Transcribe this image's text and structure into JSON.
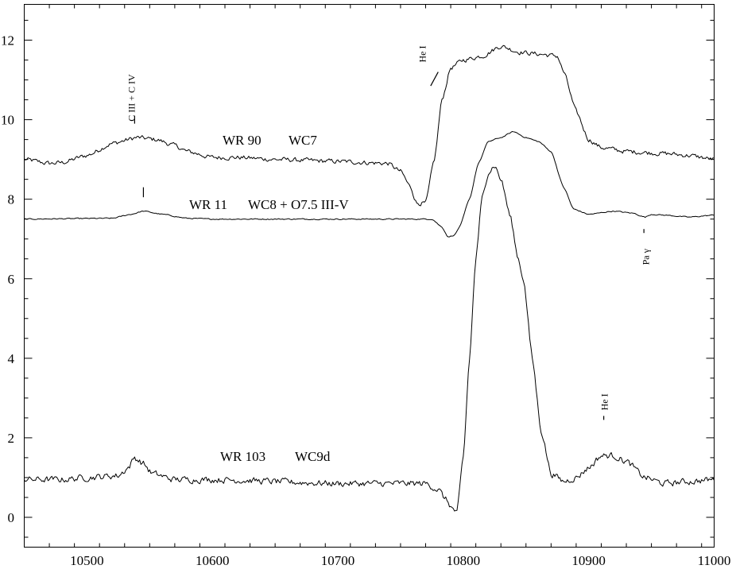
{
  "chart_data": {
    "type": "line",
    "title": "",
    "xlabel": "",
    "ylabel": "",
    "xlim": [
      10450,
      11000
    ],
    "ylim": [
      -0.75,
      12.9
    ],
    "x_ticks": [
      10500,
      10600,
      10700,
      10800,
      10900,
      11000
    ],
    "y_ticks": [
      0,
      2,
      4,
      6,
      8,
      10,
      12
    ],
    "x_minor_step": 20,
    "y_minor_step": 0.5,
    "grid": false,
    "series": [
      {
        "key": "wr90",
        "label_name": "WR 90",
        "label_type": "WC7",
        "noise": 0.05,
        "points": [
          [
            10450,
            9.0
          ],
          [
            10470,
            8.9
          ],
          [
            10480,
            8.92
          ],
          [
            10500,
            9.1
          ],
          [
            10520,
            9.4
          ],
          [
            10540,
            9.55
          ],
          [
            10555,
            9.5
          ],
          [
            10570,
            9.35
          ],
          [
            10580,
            9.2
          ],
          [
            10600,
            9.05
          ],
          [
            10620,
            9.05
          ],
          [
            10650,
            9.0
          ],
          [
            10700,
            8.95
          ],
          [
            10740,
            8.9
          ],
          [
            10750,
            8.7
          ],
          [
            10758,
            8.3
          ],
          [
            10763,
            7.9
          ],
          [
            10770,
            7.9
          ],
          [
            10777,
            9.0
          ],
          [
            10783,
            10.5
          ],
          [
            10790,
            11.3
          ],
          [
            10800,
            11.5
          ],
          [
            10815,
            11.6
          ],
          [
            10830,
            11.85
          ],
          [
            10845,
            11.7
          ],
          [
            10860,
            11.65
          ],
          [
            10875,
            11.6
          ],
          [
            10880,
            11.2
          ],
          [
            10890,
            10.2
          ],
          [
            10900,
            9.5
          ],
          [
            10910,
            9.3
          ],
          [
            10930,
            9.2
          ],
          [
            10960,
            9.15
          ],
          [
            10980,
            9.1
          ],
          [
            11000,
            9.0
          ]
        ]
      },
      {
        "key": "wr11",
        "label_name": "WR 11",
        "label_type": "WC8 + O7.5 III-V",
        "noise": 0.012,
        "points": [
          [
            10450,
            7.5
          ],
          [
            10520,
            7.52
          ],
          [
            10535,
            7.62
          ],
          [
            10545,
            7.7
          ],
          [
            10560,
            7.62
          ],
          [
            10580,
            7.52
          ],
          [
            10600,
            7.5
          ],
          [
            10700,
            7.5
          ],
          [
            10775,
            7.5
          ],
          [
            10783,
            7.3
          ],
          [
            10788,
            7.05
          ],
          [
            10793,
            7.1
          ],
          [
            10797,
            7.3
          ],
          [
            10805,
            8.0
          ],
          [
            10812,
            8.9
          ],
          [
            10820,
            9.45
          ],
          [
            10830,
            9.55
          ],
          [
            10840,
            9.7
          ],
          [
            10850,
            9.55
          ],
          [
            10860,
            9.45
          ],
          [
            10870,
            9.2
          ],
          [
            10880,
            8.3
          ],
          [
            10888,
            7.75
          ],
          [
            10900,
            7.62
          ],
          [
            10920,
            7.7
          ],
          [
            10935,
            7.65
          ],
          [
            10945,
            7.55
          ],
          [
            10950,
            7.62
          ],
          [
            10960,
            7.6
          ],
          [
            10980,
            7.55
          ],
          [
            11000,
            7.6
          ]
        ]
      },
      {
        "key": "wr103",
        "label_name": "WR 103",
        "label_type": "WC9d",
        "noise": 0.07,
        "points": [
          [
            10450,
            0.95
          ],
          [
            10480,
            0.95
          ],
          [
            10500,
            1.0
          ],
          [
            10525,
            1.05
          ],
          [
            10533,
            1.25
          ],
          [
            10538,
            1.5
          ],
          [
            10545,
            1.35
          ],
          [
            10552,
            1.1
          ],
          [
            10570,
            0.95
          ],
          [
            10600,
            0.95
          ],
          [
            10700,
            0.85
          ],
          [
            10770,
            0.85
          ],
          [
            10780,
            0.7
          ],
          [
            10786,
            0.45
          ],
          [
            10792,
            0.2
          ],
          [
            10795,
            0.1
          ],
          [
            10800,
            1.5
          ],
          [
            10805,
            4.0
          ],
          [
            10810,
            6.5
          ],
          [
            10815,
            8.0
          ],
          [
            10820,
            8.7
          ],
          [
            10825,
            8.85
          ],
          [
            10830,
            8.5
          ],
          [
            10838,
            7.5
          ],
          [
            10843,
            6.6
          ],
          [
            10848,
            6.0
          ],
          [
            10855,
            4.0
          ],
          [
            10862,
            2.2
          ],
          [
            10870,
            1.1
          ],
          [
            10880,
            0.9
          ],
          [
            10890,
            1.0
          ],
          [
            10900,
            1.25
          ],
          [
            10910,
            1.55
          ],
          [
            10920,
            1.55
          ],
          [
            10930,
            1.4
          ],
          [
            10945,
            1.0
          ],
          [
            10960,
            0.85
          ],
          [
            10980,
            0.9
          ],
          [
            11000,
            0.95
          ]
        ]
      }
    ],
    "annotations": [
      {
        "key": "ciiiciv",
        "text": "C III + C IV",
        "x": 10538,
        "y": 10.55,
        "rotate": -90,
        "mark": [
          10538,
          9.9,
          10538,
          10.1
        ]
      },
      {
        "key": "hei_top",
        "text": "He I",
        "x": 10770,
        "y": 11.65,
        "rotate": -90,
        "mark": [
          10774,
          10.85,
          10780,
          11.2
        ]
      },
      {
        "key": "wr11_mark",
        "text": "",
        "x": 10545,
        "y": 8.2,
        "rotate": 0,
        "mark": [
          10545,
          8.05,
          10545,
          8.3
        ]
      },
      {
        "key": "pagamma",
        "text": "Pa γ",
        "x": 10948,
        "y": 6.55,
        "rotate": -90,
        "mark": [
          10944,
          7.15,
          10944,
          7.25
        ]
      },
      {
        "key": "hei_bottom",
        "text": "He I",
        "x": 10915,
        "y": 2.9,
        "rotate": -90,
        "mark": [
          10912,
          2.45,
          10912,
          2.55
        ]
      }
    ]
  }
}
